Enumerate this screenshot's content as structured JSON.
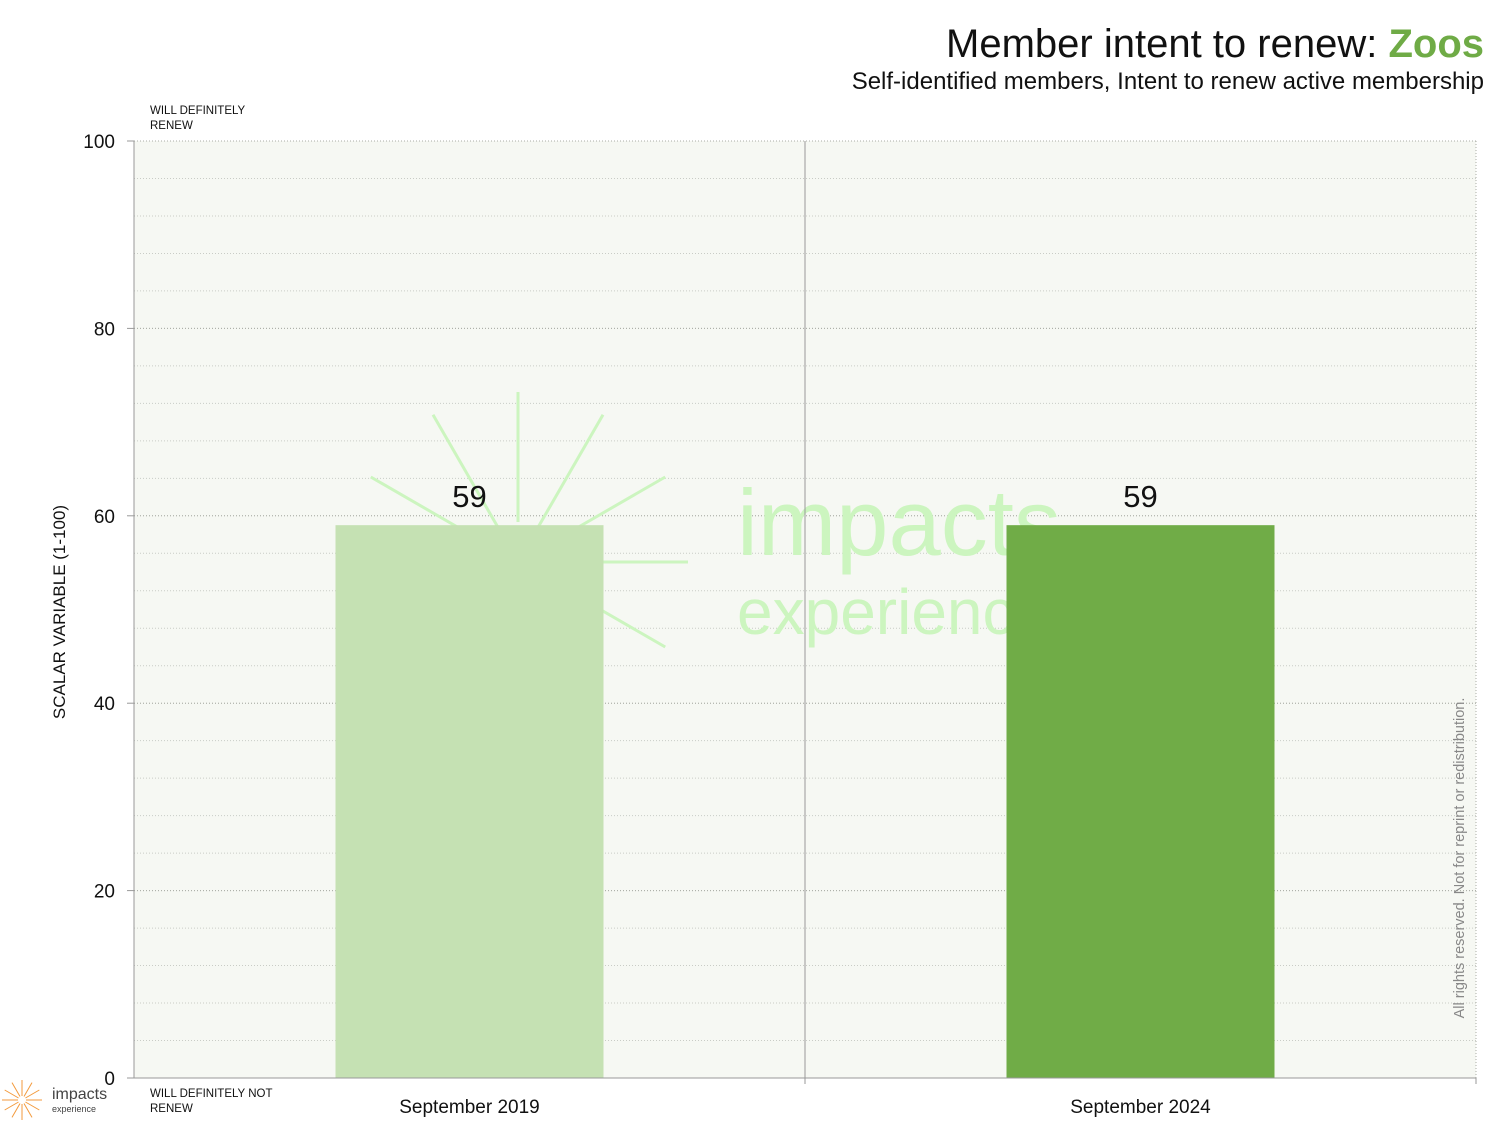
{
  "chart_data": {
    "type": "bar",
    "title": {
      "main": "Member intent to renew: ",
      "highlight": "Zoos"
    },
    "subtitle": "Self-identified members, Intent to renew active membership",
    "ylabel": "SCALAR VARIABLE (1-100)",
    "xlabel": "",
    "ylim": [
      0,
      100
    ],
    "yticks": [
      0,
      20,
      40,
      60,
      80,
      100
    ],
    "grid": true,
    "categories": [
      "September 2019",
      "September 2024"
    ],
    "values": [
      59,
      59
    ],
    "bar_colors": [
      "#c5e1b3",
      "#70ac47"
    ],
    "top_anchor_label": "WILL DEFINITELY RENEW",
    "bottom_anchor_label": "WILL DEFINITELY NOT RENEW"
  },
  "footer": {
    "rights_text": "All rights reserved. Not for reprint or redistribution.",
    "logo_name": "impacts",
    "logo_sub": "experience"
  },
  "watermark": {
    "line1": "impacts",
    "line2": "experience"
  },
  "colors": {
    "accent": "#6fab46",
    "plot_bg": "#f6f8f3",
    "watermark": "#ccf5bf"
  }
}
